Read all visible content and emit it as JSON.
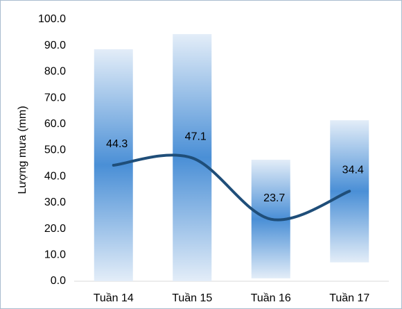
{
  "chart_data": {
    "type": "combo",
    "y_label": "Lượng mưa (mm)",
    "categories": [
      "Tuần 14",
      "Tuần 15",
      "Tuần 16",
      "Tuần 17"
    ],
    "series": [
      {
        "type": "range",
        "color": "#4a8fd6",
        "low": [
          0,
          0,
          1.1,
          7.2
        ],
        "high": [
          88.6,
          94.4,
          46.4,
          61.5
        ]
      },
      {
        "type": "line",
        "color": "#1f4e79",
        "values": [
          44.3,
          47.1,
          23.7,
          34.4
        ]
      }
    ],
    "ylim": [
      0,
      100
    ],
    "yticks": [
      {
        "value": 0,
        "label": "0.0"
      },
      {
        "value": 10,
        "label": "10.0"
      },
      {
        "value": 20,
        "label": "20.0"
      },
      {
        "value": 30,
        "label": "30.0"
      },
      {
        "value": 40,
        "label": "40.0"
      },
      {
        "value": 50,
        "label": "50.0"
      },
      {
        "value": 60,
        "label": "60.0"
      },
      {
        "value": 70,
        "label": "70.0"
      },
      {
        "value": 80,
        "label": "80.0"
      },
      {
        "value": 90,
        "label": "90.0"
      },
      {
        "value": 100,
        "label": "100.0"
      }
    ],
    "grid": false
  }
}
